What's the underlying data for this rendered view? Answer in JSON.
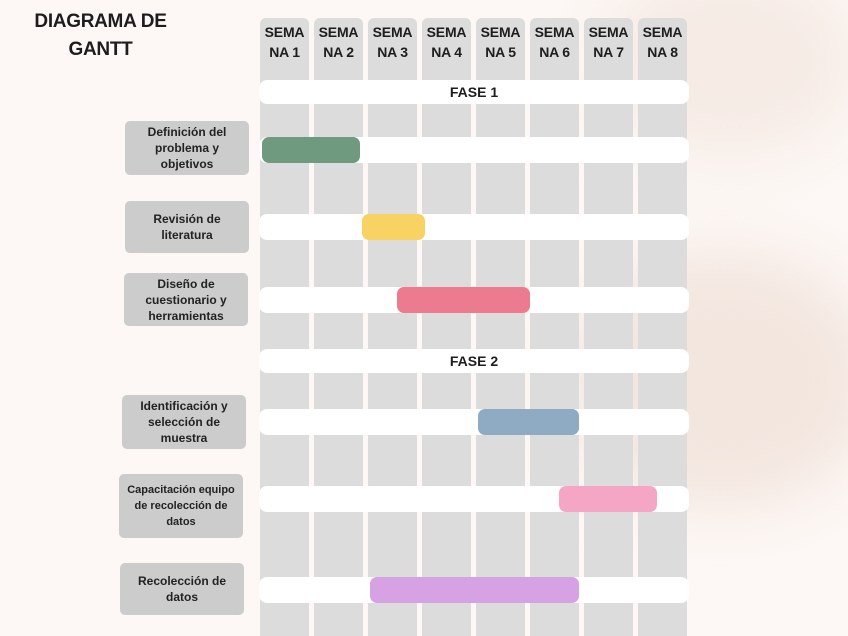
{
  "title": "DIAGRAMA DE GANTT",
  "weeks": [
    "SEMA\nNA 1",
    "SEMA\nNA 2",
    "SEMA\nNA 3",
    "SEMA\nNA 4",
    "SEMA\nNA 5",
    "SEMA\nNA 6",
    "SEMA\nNA 7",
    "SEMA\nNA 8"
  ],
  "phases": [
    {
      "label": "FASE 1"
    },
    {
      "label": "FASE 2"
    }
  ],
  "tasks": [
    {
      "label": "Definición del problema y objetivos",
      "start_week": 1.0,
      "end_week": 2.85,
      "color": "#6f9a80"
    },
    {
      "label": "Revisión de literatura",
      "start_week": 2.85,
      "end_week": 4.05,
      "color": "#f9d264"
    },
    {
      "label": "Diseño de cuestionario y herramientas",
      "start_week": 3.5,
      "end_week": 6.0,
      "color": "#ed7b8f"
    },
    {
      "label": "Identificación y selección de muestra",
      "start_week": 5.0,
      "end_week": 6.9,
      "color": "#8fabc3"
    },
    {
      "label": "Capacitación equipo de recolección de datos",
      "start_week": 6.5,
      "end_week": 8.35,
      "color": "#f5a6c4"
    },
    {
      "label": "Recolección de datos",
      "start_week": 3.0,
      "end_week": 6.9,
      "color": "#d7a2e4"
    }
  ],
  "colors": {
    "column": "#dcdcdc",
    "band": "#ffffff",
    "label_box": "#cccccc"
  }
}
